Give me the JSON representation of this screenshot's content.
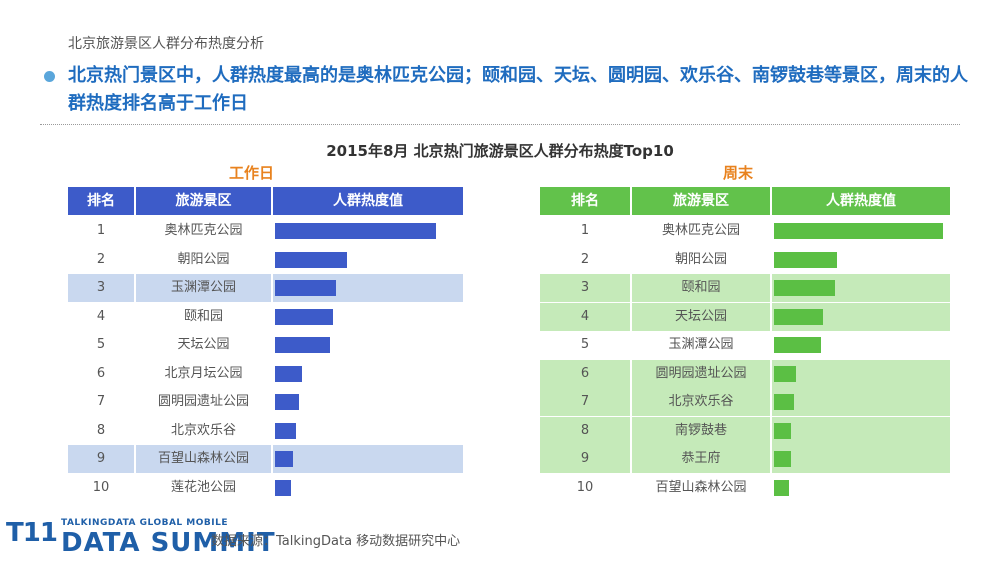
{
  "page": {
    "subtitle": "北京旅游景区人群分布热度分析",
    "headline": "北京热门景区中，人群热度最高的是奥林匹克公园；颐和园、天坛、圆明园、欢乐谷、南锣鼓巷等景区，周末的人群热度排名高于工作日",
    "source": "数据来源：TalkingData 移动数据研究中心",
    "logo": {
      "mark": "T11",
      "line1": "TALKINGDATA GLOBAL MOBILE",
      "line2": "DATA SUMMIT"
    }
  },
  "colors": {
    "headline": "#1f6cbf",
    "weekday_header": "#3d5bc9",
    "weekday_bar": "#3d5bc9",
    "weekday_highlight": "#c9d8ef",
    "weekend_header": "#62c24b",
    "weekend_bar": "#5bbf44",
    "weekend_highlight": "#c5eab9",
    "panel_title": "#e8821e"
  },
  "chart_data": {
    "type": "bar",
    "title": "2015年8月 北京热门旅游景区人群分布热度Top10",
    "columns": [
      "排名",
      "旅游景区",
      "人群热度值"
    ],
    "panels": [
      {
        "name": "工作日",
        "ranks": [
          "1",
          "2",
          "3",
          "4",
          "5",
          "6",
          "7",
          "8",
          "9",
          "10"
        ],
        "categories": [
          "奥林匹克公园",
          "朝阳公园",
          "玉渊潭公园",
          "颐和园",
          "天坛公园",
          "北京月坛公园",
          "圆明园遗址公园",
          "北京欢乐谷",
          "百望山森林公园",
          "莲花池公园"
        ],
        "values": [
          100,
          45,
          38,
          36,
          34,
          17,
          15,
          13,
          11,
          10
        ],
        "highlighted": [
          3,
          9
        ]
      },
      {
        "name": "周末",
        "ranks": [
          "1",
          "2",
          "3",
          "4",
          "5",
          "6",
          "7",
          "8",
          "9",
          "10"
        ],
        "categories": [
          "奥林匹克公园",
          "朝阳公园",
          "颐和园",
          "天坛公园",
          "玉渊潭公园",
          "圆明园遗址公园",
          "北京欢乐谷",
          "南锣鼓巷",
          "恭王府",
          "百望山森林公园"
        ],
        "values": [
          100,
          37,
          36,
          29,
          28,
          13,
          12,
          10,
          10,
          9
        ],
        "highlighted": [
          3,
          4,
          6,
          7,
          8,
          9
        ]
      }
    ]
  }
}
